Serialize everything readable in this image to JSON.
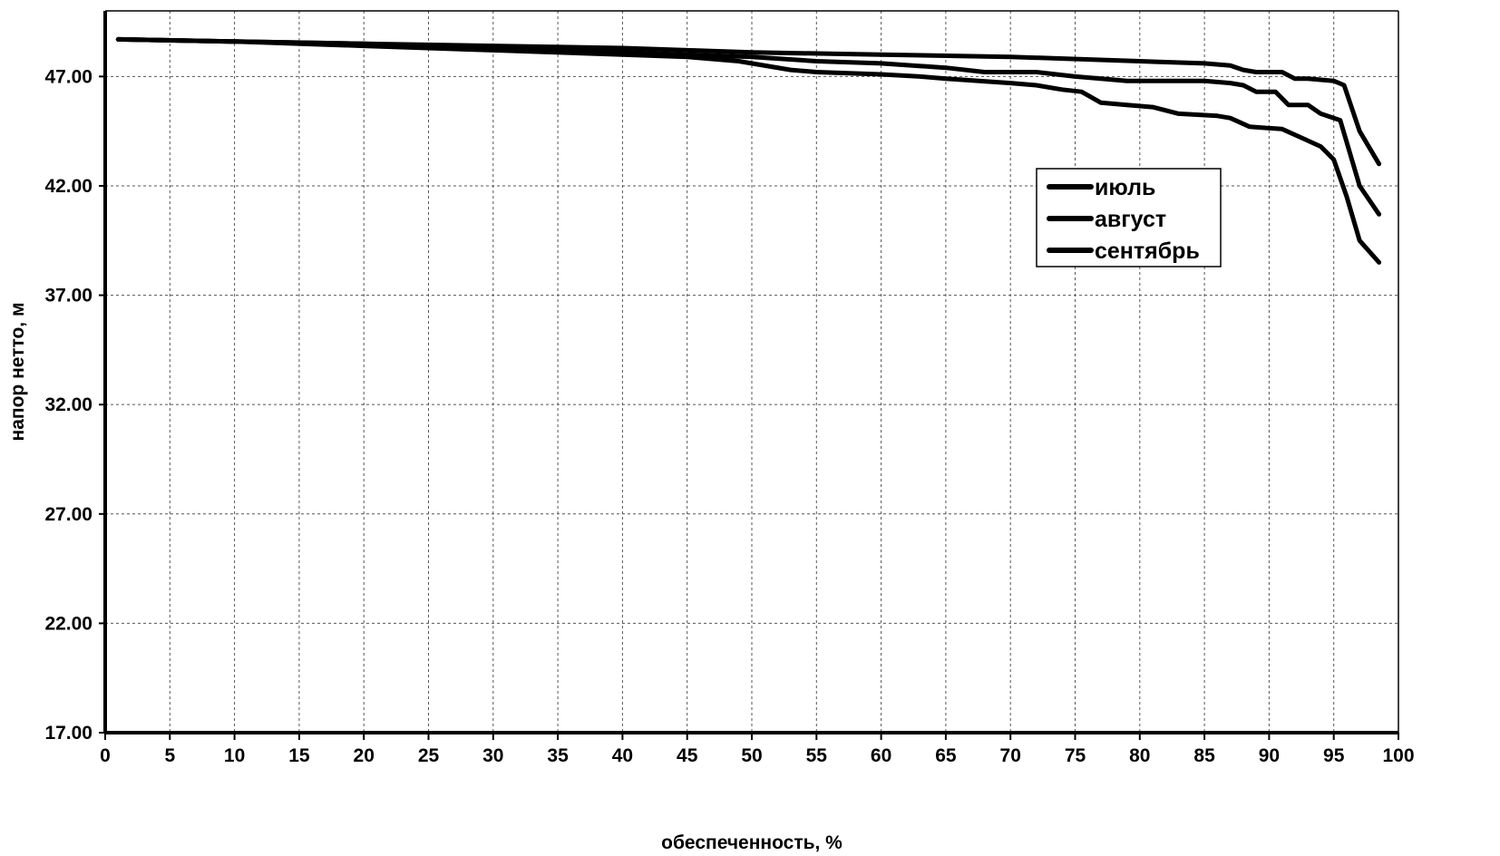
{
  "chart_data": {
    "type": "line",
    "title": "",
    "xlabel": "обеспеченность, %",
    "ylabel": "напор нетто, м",
    "xlim": [
      0,
      100
    ],
    "ylim": [
      17,
      50
    ],
    "x_ticks": [
      0,
      5,
      10,
      15,
      20,
      25,
      30,
      35,
      40,
      45,
      50,
      55,
      60,
      65,
      70,
      75,
      80,
      85,
      90,
      95,
      100
    ],
    "x_tick_labels": [
      "0",
      "5",
      "10",
      "15",
      "20",
      "25",
      "30",
      "35",
      "40",
      "45",
      "50",
      "55",
      "60",
      "65",
      "70",
      "75",
      "80",
      "85",
      "90",
      "95",
      "100"
    ],
    "y_ticks": [
      17,
      22,
      27,
      32,
      37,
      42,
      47
    ],
    "y_tick_labels": [
      "17.00",
      "22.00",
      "27.00",
      "32.00",
      "37.00",
      "42.00",
      "47.00"
    ],
    "grid": true,
    "legend_position": "top-right",
    "series": [
      {
        "name": "июль",
        "x": [
          1,
          10,
          20,
          30,
          40,
          45,
          50,
          60,
          70,
          80,
          85,
          87,
          88,
          89,
          91,
          92,
          93,
          95,
          95.8,
          97,
          98.5
        ],
        "y": [
          48.7,
          48.6,
          48.5,
          48.4,
          48.3,
          48.2,
          48.1,
          48.0,
          47.9,
          47.7,
          47.6,
          47.5,
          47.3,
          47.2,
          47.2,
          46.9,
          46.9,
          46.8,
          46.6,
          44.5,
          43.0
        ]
      },
      {
        "name": "август",
        "x": [
          1,
          10,
          20,
          30,
          40,
          45,
          50,
          55,
          60,
          65,
          68,
          72,
          75,
          77,
          79,
          82,
          85,
          87,
          88,
          89,
          90.5,
          91.5,
          93,
          94,
          95.5,
          97,
          98.5
        ],
        "y": [
          48.7,
          48.6,
          48.5,
          48.3,
          48.1,
          48.0,
          47.9,
          47.7,
          47.6,
          47.4,
          47.2,
          47.2,
          47.0,
          46.9,
          46.8,
          46.8,
          46.8,
          46.7,
          46.6,
          46.3,
          46.3,
          45.7,
          45.7,
          45.3,
          45.0,
          42.0,
          40.7
        ]
      },
      {
        "name": "сентябрь",
        "x": [
          1,
          10,
          20,
          30,
          40,
          45,
          49,
          53,
          55,
          60,
          63,
          65,
          70,
          72,
          74,
          75.5,
          77,
          79,
          81,
          83,
          86,
          87,
          88.5,
          91,
          92.5,
          94,
          95,
          96,
          97,
          98.5
        ],
        "y": [
          48.7,
          48.6,
          48.4,
          48.2,
          48.0,
          47.9,
          47.7,
          47.3,
          47.2,
          47.1,
          47.0,
          46.9,
          46.7,
          46.6,
          46.4,
          46.3,
          45.8,
          45.7,
          45.6,
          45.3,
          45.2,
          45.1,
          44.7,
          44.6,
          44.2,
          43.8,
          43.2,
          41.5,
          39.5,
          38.5
        ]
      }
    ]
  }
}
